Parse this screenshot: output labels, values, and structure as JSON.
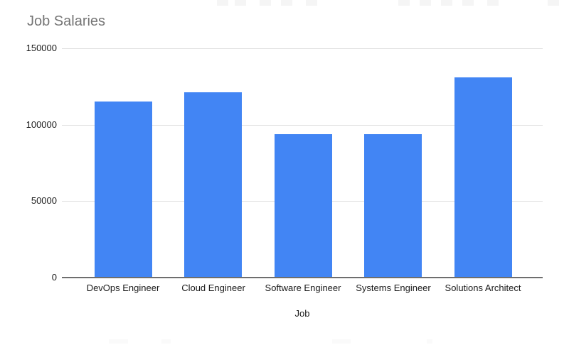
{
  "chart_data": {
    "type": "bar",
    "title": "Job Salaries",
    "xlabel": "Job",
    "ylabel": "",
    "categories": [
      "DevOps Engineer",
      "Cloud Engineer",
      "Software Engineer",
      "Systems Engineer",
      "Solutions Architect"
    ],
    "values": [
      115000,
      121000,
      94000,
      94000,
      131000
    ],
    "ylim": [
      0,
      150000
    ],
    "yticks": [
      0,
      50000,
      100000,
      150000
    ],
    "grid": true,
    "legend_position": "none",
    "colors": {
      "bar": "#4285f4",
      "title_text": "#757575",
      "axis_text": "#1a1a1a",
      "gridline": "#e0e0e0",
      "axis_line": "#6e6e6e",
      "background": "#ffffff"
    }
  }
}
